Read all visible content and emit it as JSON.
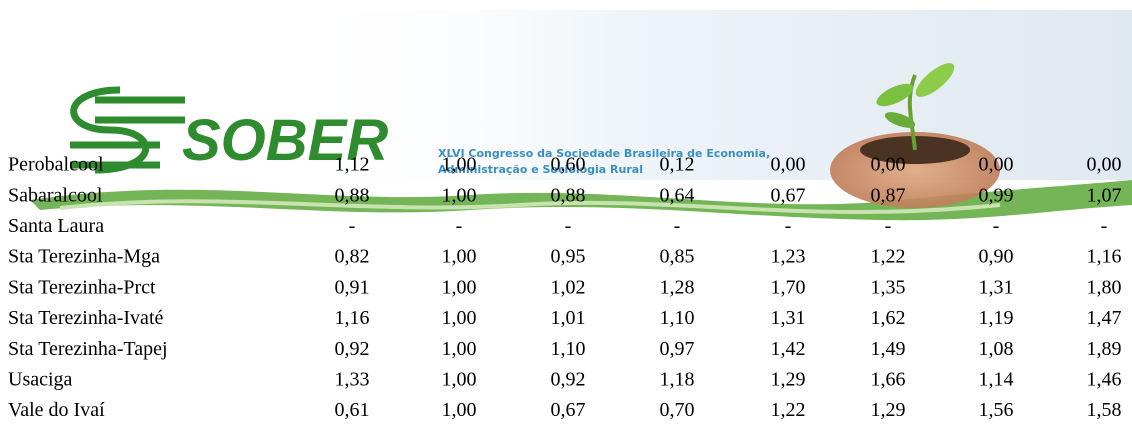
{
  "header": {
    "logo": "SOBER",
    "subtitle_lines": [
      "XLVI Congresso da Sociedade Brasileira de Economia,",
      "Administração e Sociologia Rural"
    ]
  },
  "table": {
    "rows": [
      [
        "Perobalcool",
        "1,12",
        "1,00",
        "0,60",
        "0,12",
        "0,00",
        "0,00",
        "0,00",
        "0,00"
      ],
      [
        "Sabaralcool",
        "0,88",
        "1,00",
        "0,88",
        "0,64",
        "0,67",
        "0,87",
        "0,99",
        "1,07"
      ],
      [
        "Santa Laura",
        "-",
        "-",
        "-",
        "-",
        "-",
        "-",
        "-",
        "-"
      ],
      [
        "Sta Terezinha-Mga",
        "0,82",
        "1,00",
        "0,95",
        "0,85",
        "1,23",
        "1,22",
        "0,90",
        "1,16"
      ],
      [
        "Sta Terezinha-Prct",
        "0,91",
        "1,00",
        "1,02",
        "1,28",
        "1,70",
        "1,35",
        "1,31",
        "1,80"
      ],
      [
        "Sta Terezinha-Ivaté",
        "1,16",
        "1,00",
        "1,01",
        "1,10",
        "1,31",
        "1,62",
        "1,19",
        "1,47"
      ],
      [
        "Sta Terezinha-Tapej",
        "0,92",
        "1,00",
        "1,10",
        "0,97",
        "1,42",
        "1,49",
        "1,08",
        "1,89"
      ],
      [
        "Usaciga",
        "1,33",
        "1,00",
        "0,92",
        "1,18",
        "1,29",
        "1,66",
        "1,14",
        "1,46"
      ],
      [
        "Vale do Ivaí",
        "0,61",
        "1,00",
        "0,67",
        "0,70",
        "1,22",
        "1,29",
        "1,56",
        "1,58"
      ]
    ]
  }
}
